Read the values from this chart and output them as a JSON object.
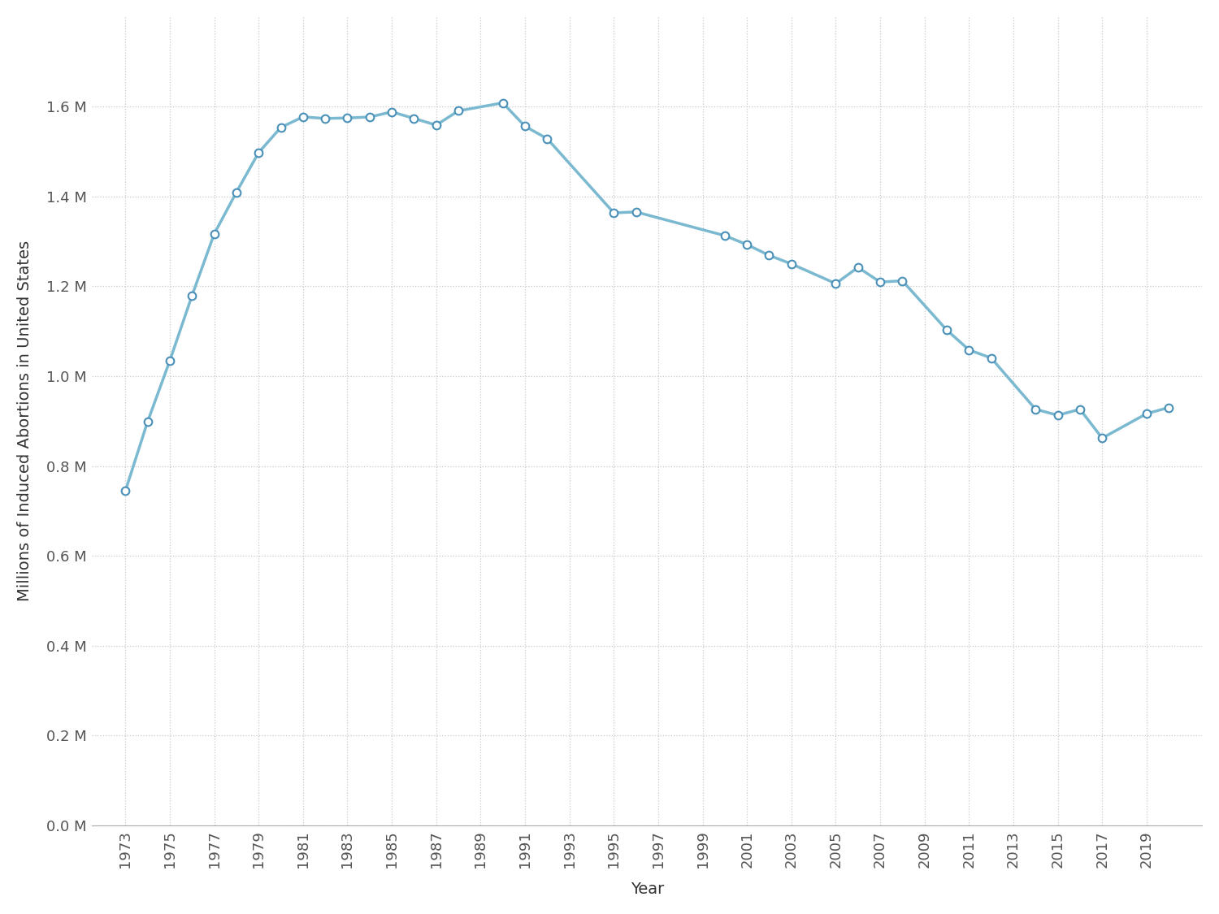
{
  "years": [
    1973,
    1974,
    1975,
    1976,
    1977,
    1978,
    1979,
    1980,
    1981,
    1982,
    1983,
    1984,
    1985,
    1986,
    1987,
    1988,
    1990,
    1991,
    1992,
    1995,
    1996,
    2000,
    2001,
    2002,
    2003,
    2005,
    2006,
    2007,
    2008,
    2010,
    2011,
    2012,
    2014,
    2015,
    2016,
    2017,
    2019,
    2020
  ],
  "values": [
    744600,
    898600,
    1034200,
    1179300,
    1316700,
    1409600,
    1497670,
    1553890,
    1577340,
    1573920,
    1575000,
    1577200,
    1588550,
    1574000,
    1559110,
    1590750,
    1608600,
    1556510,
    1528930,
    1363690,
    1365730,
    1312990,
    1293000,
    1269000,
    1250000,
    1206200,
    1242200,
    1209640,
    1212350,
    1102670,
    1058490,
    1040390,
    926200,
    913030,
    926190,
    862000,
    916460,
    930160
  ],
  "line_color": "#7ab9d0",
  "marker_face_color": "#ffffff",
  "marker_edge_color": "#4a90b8",
  "ylabel": "Millions of Induced Abortions in United States",
  "xlabel": "Year",
  "ylim_min": 0,
  "ylim_max": 1800000,
  "background_color": "#ffffff",
  "grid_color": "#c8c8c8",
  "tick_label_color": "#555555",
  "axis_label_color": "#333333",
  "x_ticks": [
    1973,
    1975,
    1977,
    1979,
    1981,
    1983,
    1985,
    1987,
    1989,
    1991,
    1993,
    1995,
    1997,
    1999,
    2001,
    2003,
    2005,
    2007,
    2009,
    2011,
    2013,
    2015,
    2017,
    2019
  ],
  "y_ticks": [
    0,
    200000,
    400000,
    600000,
    800000,
    1000000,
    1200000,
    1400000,
    1600000
  ],
  "y_tick_labels": [
    "0.0 M",
    "0.2 M",
    "0.4 M",
    "0.6 M",
    "0.8 M",
    "1.0 M",
    "1.2 M",
    "1.4 M",
    "1.6 M"
  ],
  "linewidth": 2.5,
  "markersize": 7,
  "markeredgewidth": 1.5,
  "xlabel_fontsize": 14,
  "ylabel_fontsize": 14,
  "tick_fontsize": 13
}
